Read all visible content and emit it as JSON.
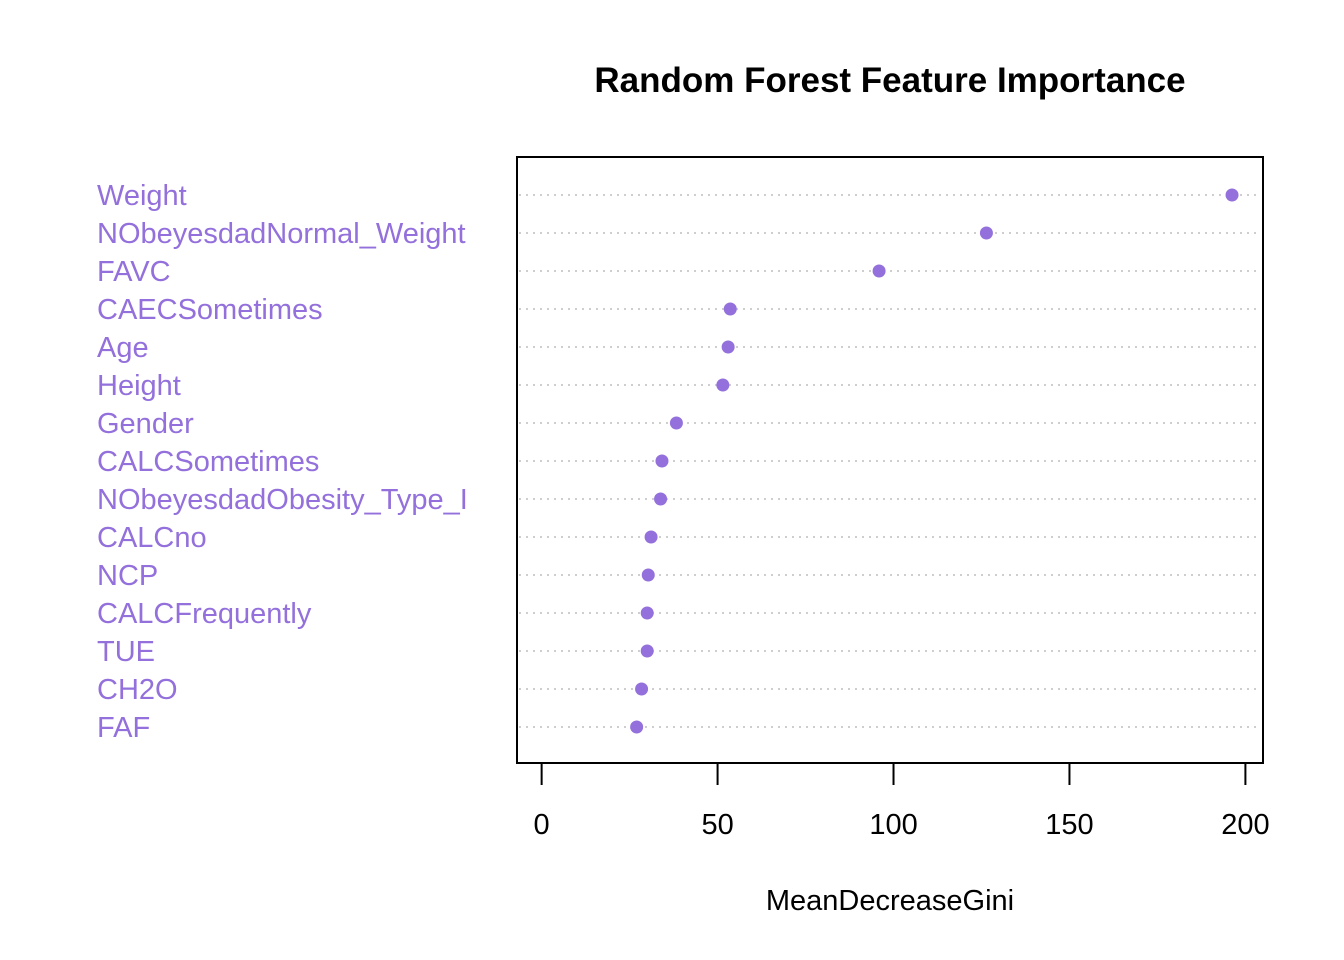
{
  "chart_data": {
    "type": "scatter",
    "title": "Random Forest Feature Importance",
    "xlabel": "MeanDecreaseGini",
    "ylabel": "",
    "xlim": [
      -7,
      205
    ],
    "xticks": [
      0,
      50,
      100,
      150,
      200
    ],
    "grid": "dotted horizontal lines",
    "point_color": "#9370DB",
    "label_color": "#9370DB",
    "categories": [
      "Weight",
      "NObeyesdadNormal_Weight",
      "FAVC",
      "CAECSometimes",
      "Age",
      "Height",
      "Gender",
      "CALCSometimes",
      "NObeyesdadObesity_Type_I",
      "CALCno",
      "NCP",
      "CALCFrequently",
      "TUE",
      "CH2O",
      "FAF"
    ],
    "values": [
      196.2,
      126.4,
      95.9,
      53.6,
      53.0,
      51.5,
      38.3,
      34.2,
      33.8,
      31.1,
      30.3,
      30.0,
      30.0,
      28.4,
      27.0
    ]
  }
}
